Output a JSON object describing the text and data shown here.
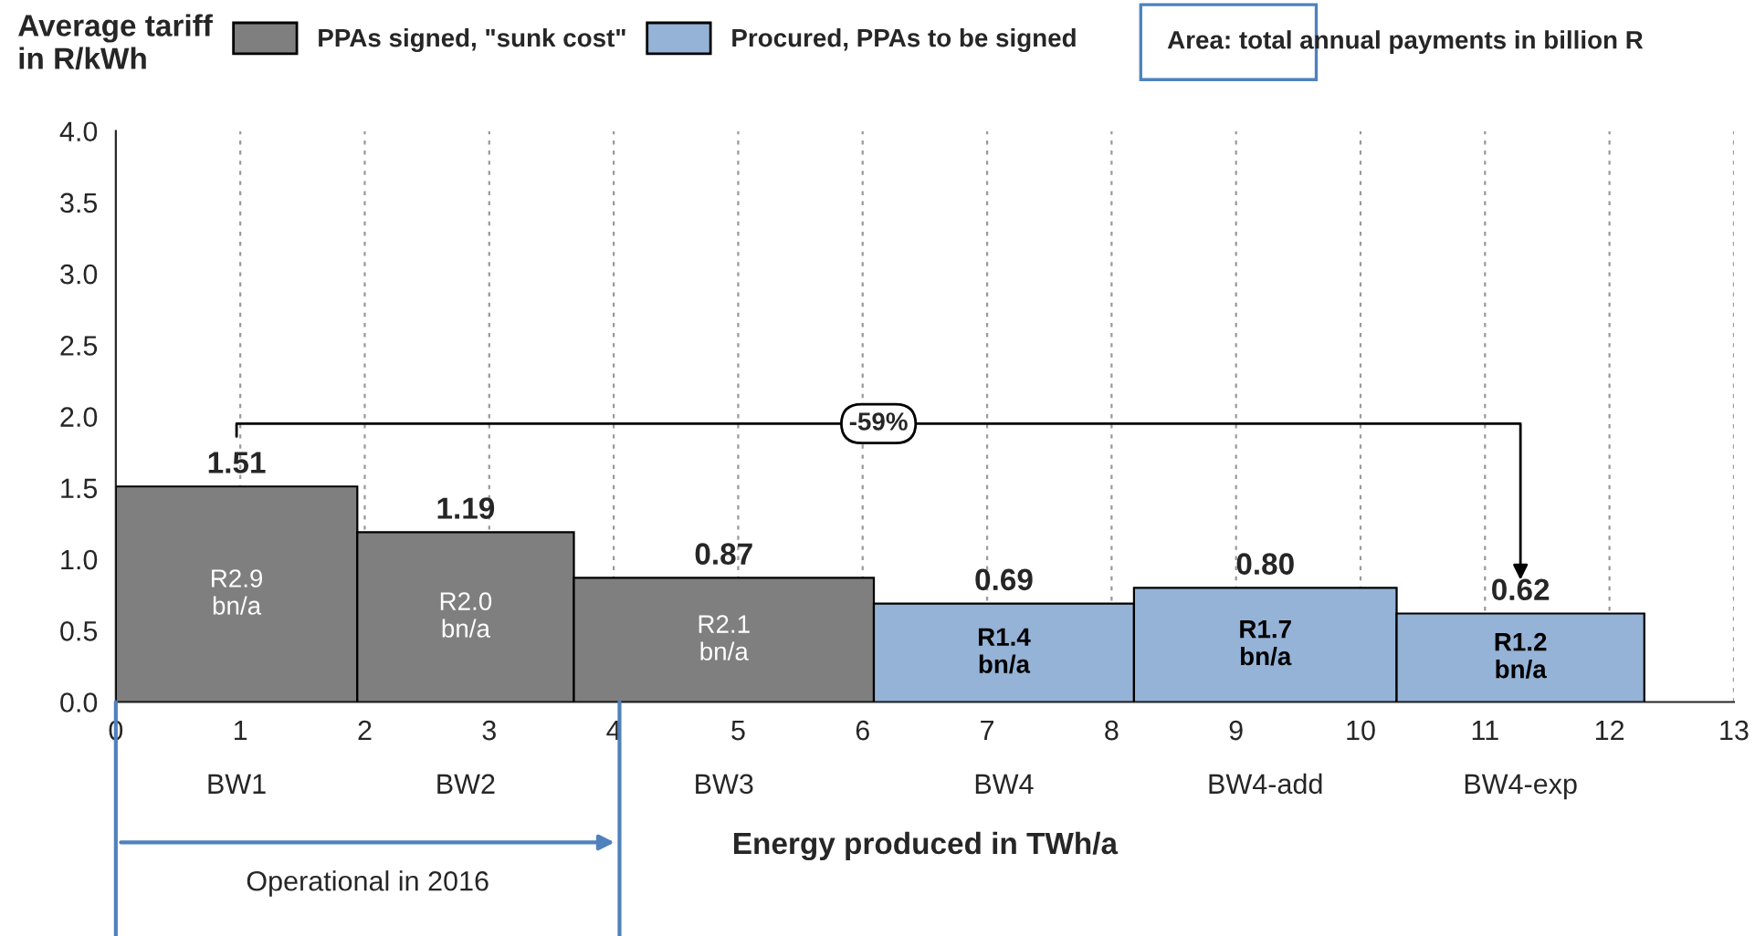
{
  "chart_data": {
    "type": "histogram",
    "ylabel": "Average tariff\nin R/kWh",
    "xlabel": "Energy produced in TWh/a",
    "bins": [
      0,
      1.94,
      3.68,
      6.09,
      8.18,
      10.29,
      12.28
    ],
    "categories": [
      "BW1",
      "BW2",
      "BW3",
      "BW4",
      "BW4-add",
      "BW4-exp"
    ],
    "series": [
      {
        "name": "PPAs signed, \"sunk cost\"",
        "color": "#7f7f7f",
        "values": [
          1.51,
          1.19,
          0.87,
          null,
          null,
          null
        ],
        "value_labels": [
          "1.51",
          "1.19",
          "0.87",
          null,
          null,
          null
        ]
      },
      {
        "name": "Procured, PPAs to be signed",
        "color": "#95b3d7",
        "values": [
          null,
          null,
          null,
          0.69,
          0.8,
          0.62
        ],
        "value_labels": [
          null,
          null,
          null,
          "0.69",
          "0.80",
          "0.62"
        ]
      }
    ],
    "annotations": [
      "R2.9\nbn/a",
      "R2.0\nbn/a",
      "R2.1\nbn/a",
      "R1.4\nbn/a",
      "R1.7\nbn/a",
      "R1.2\nbn/a",
      "-59%",
      "Area: total annual payments in billion R",
      "Operational in 2016"
    ],
    "xlim": [
      0,
      13
    ],
    "xticks": [
      0,
      1,
      2,
      3,
      4,
      5,
      6,
      7,
      8,
      9,
      10,
      11,
      12,
      13
    ],
    "ylim": [
      0,
      4
    ],
    "yticks": [
      {
        "value": 0,
        "label": "0.0"
      },
      {
        "value": 0.5,
        "label": "0.5"
      },
      {
        "value": 1,
        "label": "1.0"
      },
      {
        "value": 1.5,
        "label": "1.5"
      },
      {
        "value": 2,
        "label": "2.0"
      },
      {
        "value": 2.5,
        "label": "2.5"
      },
      {
        "value": 3,
        "label": "3.0"
      },
      {
        "value": 3.5,
        "label": "3.5"
      },
      {
        "value": 4,
        "label": "4.0"
      }
    ],
    "grid": "x",
    "legend": "top"
  }
}
